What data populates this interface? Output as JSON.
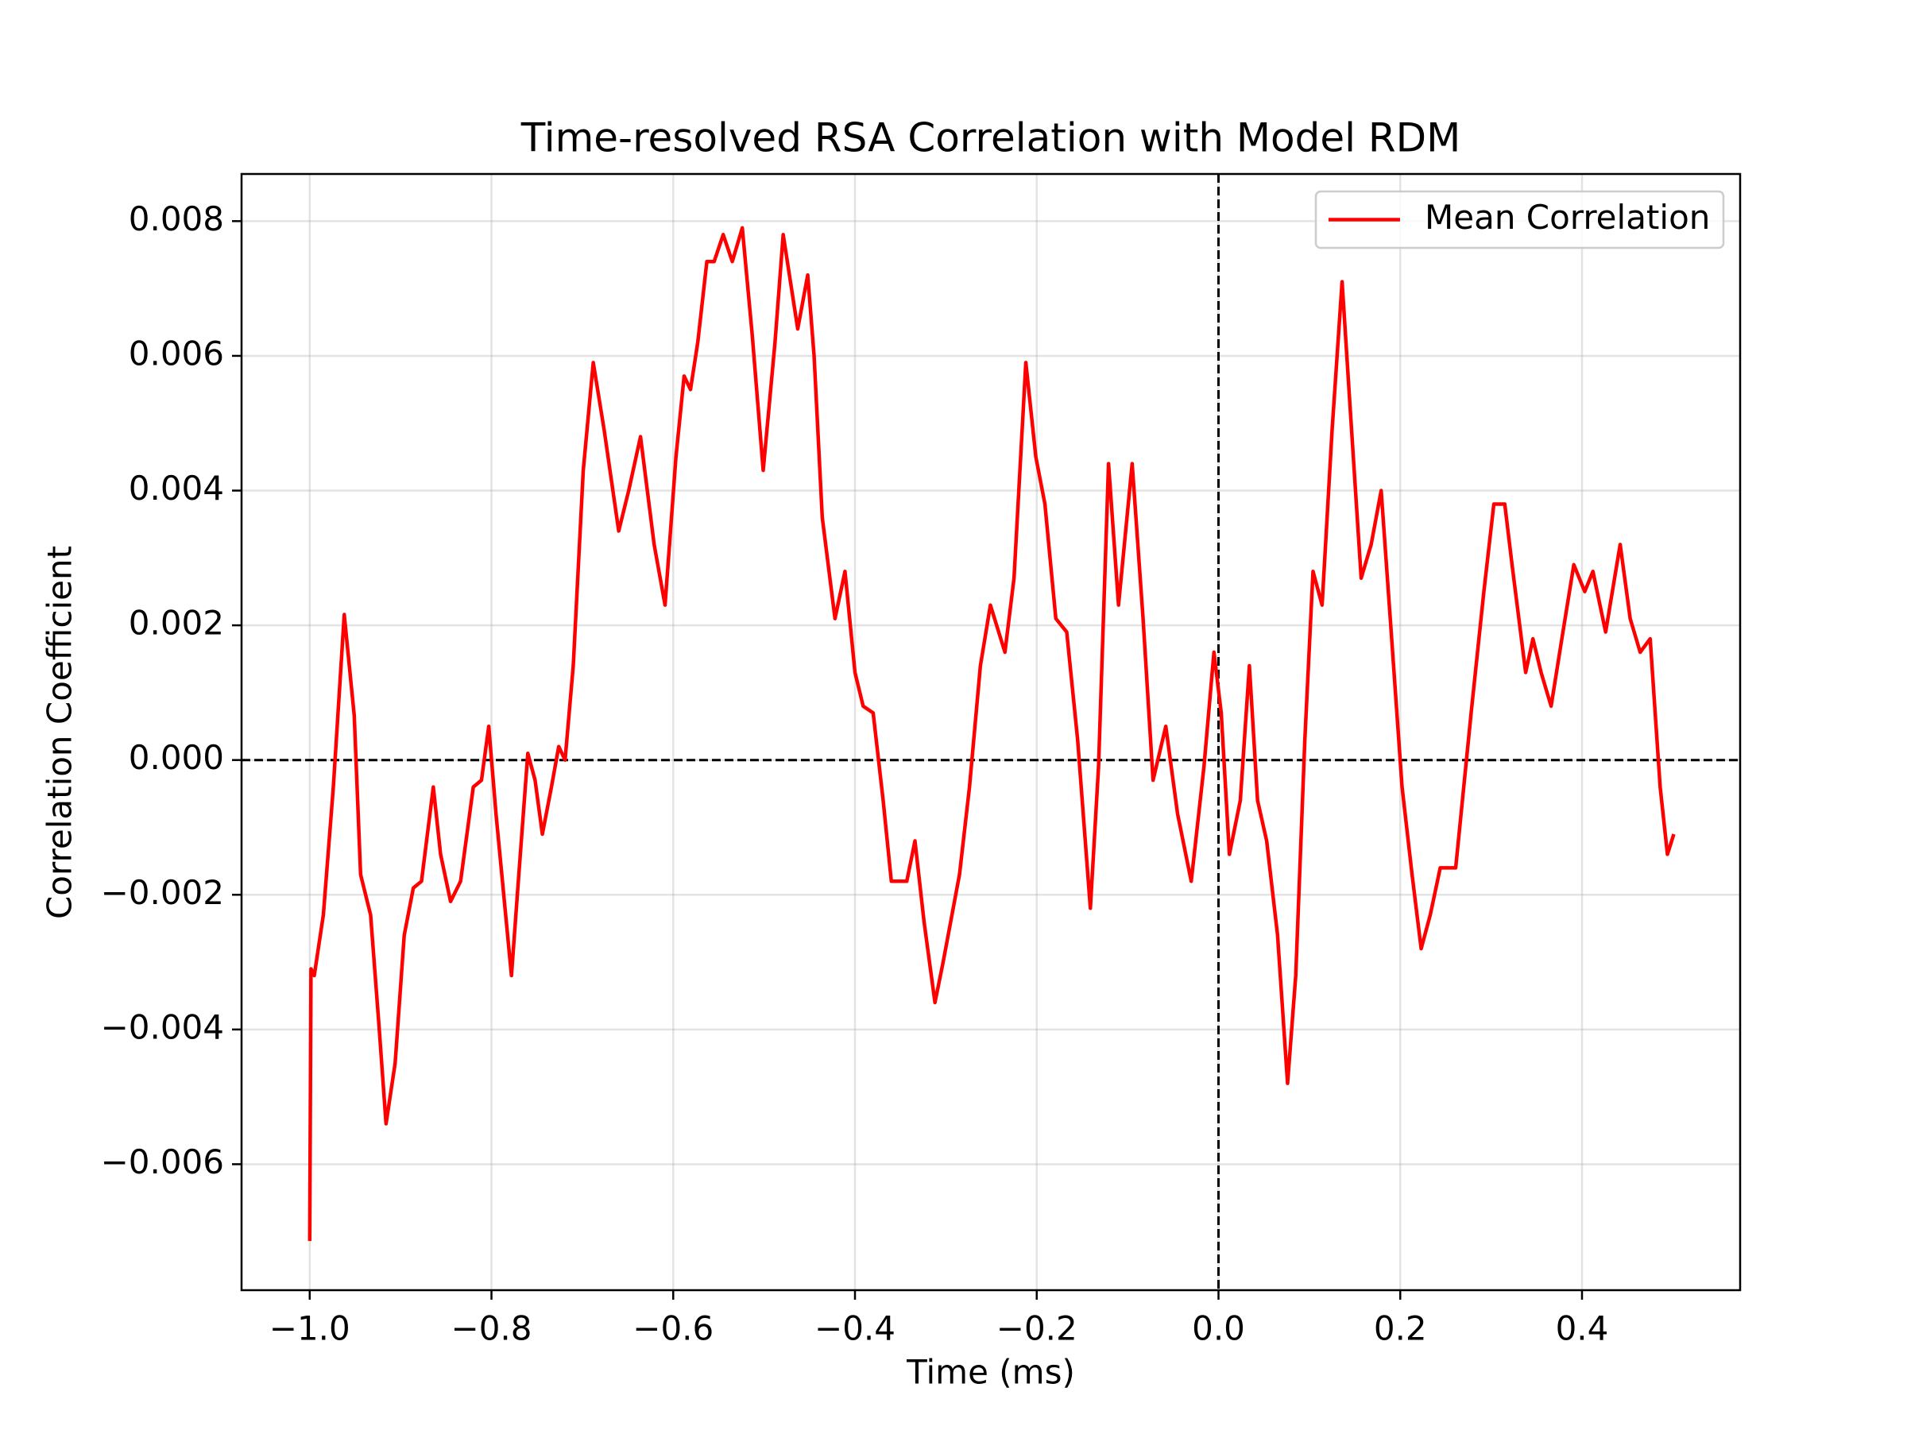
{
  "chart_data": {
    "type": "line",
    "title": "Time-resolved RSA Correlation with Model RDM",
    "xlabel": "Time (ms)",
    "ylabel": "Correlation Coefficient",
    "x": [
      -1.0,
      -0.9986,
      -0.995,
      -0.985,
      -0.974,
      -0.962,
      -0.951,
      -0.944,
      -0.933,
      -0.924,
      -0.916,
      -0.906,
      -0.896,
      -0.886,
      -0.877,
      -0.864,
      -0.856,
      -0.845,
      -0.834,
      -0.82,
      -0.811,
      -0.803,
      -0.795,
      -0.778,
      -0.771,
      -0.76,
      -0.752,
      -0.744,
      -0.734,
      -0.726,
      -0.719,
      -0.71,
      -0.699,
      -0.688,
      -0.676,
      -0.66,
      -0.649,
      -0.636,
      -0.621,
      -0.609,
      -0.597,
      -0.588,
      -0.581,
      -0.573,
      -0.563,
      -0.555,
      -0.545,
      -0.535,
      -0.524,
      -0.513,
      -0.501,
      -0.488,
      -0.479,
      -0.471,
      -0.463,
      -0.452,
      -0.445,
      -0.436,
      -0.422,
      -0.411,
      -0.4,
      -0.391,
      -0.38,
      -0.369,
      -0.36,
      -0.343,
      -0.334,
      -0.324,
      -0.312,
      -0.303,
      -0.285,
      -0.274,
      -0.262,
      -0.251,
      -0.235,
      -0.225,
      -0.212,
      -0.201,
      -0.191,
      -0.179,
      -0.167,
      -0.155,
      -0.141,
      -0.132,
      -0.121,
      -0.11,
      -0.095,
      -0.083,
      -0.072,
      -0.058,
      -0.045,
      -0.03,
      -0.016,
      -0.005,
      0.003,
      0.012,
      0.024,
      0.034,
      0.043,
      0.053,
      0.065,
      0.076,
      0.085,
      0.095,
      0.104,
      0.114,
      0.125,
      0.136,
      0.145,
      0.157,
      0.168,
      0.179,
      0.189,
      0.202,
      0.213,
      0.223,
      0.233,
      0.244,
      0.261,
      0.278,
      0.292,
      0.303,
      0.315,
      0.323,
      0.338,
      0.346,
      0.355,
      0.366,
      0.379,
      0.391,
      0.403,
      0.412,
      0.426,
      0.442,
      0.453,
      0.464,
      0.475,
      0.486,
      0.494,
      0.501
    ],
    "series": [
      {
        "name": "Mean Correlation",
        "color": "#ff0000",
        "values": [
          -0.00714,
          -0.0031,
          -0.0032,
          -0.0023,
          -0.0004,
          0.00216,
          0.00066,
          -0.0017,
          -0.0023,
          -0.0039,
          -0.0054,
          -0.0045,
          -0.0026,
          -0.0019,
          -0.0018,
          -0.0004,
          -0.0014,
          -0.0021,
          -0.0018,
          -0.0004,
          -0.0003,
          0.0005,
          -0.0008,
          -0.0032,
          -0.0019,
          0.0001,
          -0.0003,
          -0.0011,
          -0.0004,
          0.0002,
          0.0,
          0.0014,
          0.0043,
          0.0059,
          0.0049,
          0.0034,
          0.004,
          0.0048,
          0.0032,
          0.0023,
          0.0045,
          0.0057,
          0.0055,
          0.0062,
          0.0074,
          0.0074,
          0.0078,
          0.0074,
          0.0079,
          0.0063,
          0.0043,
          0.0062,
          0.0078,
          0.0071,
          0.0064,
          0.0072,
          0.006,
          0.0036,
          0.0021,
          0.0028,
          0.0013,
          0.0008,
          0.0007,
          -0.0006,
          -0.0018,
          -0.0018,
          -0.0012,
          -0.0024,
          -0.0036,
          -0.003,
          -0.0017,
          -0.0004,
          0.0014,
          0.0023,
          0.0016,
          0.0027,
          0.0059,
          0.0045,
          0.0038,
          0.0021,
          0.0019,
          0.0003,
          -0.0022,
          -0.0001,
          0.0044,
          0.0023,
          0.0044,
          0.0021,
          -0.0003,
          0.0005,
          -0.0008,
          -0.0018,
          -0.0001,
          0.0016,
          0.0007,
          -0.0014,
          -0.0006,
          0.0014,
          -0.0006,
          -0.0012,
          -0.0026,
          -0.0048,
          -0.0032,
          0.0003,
          0.0028,
          0.0023,
          0.0049,
          0.0071,
          0.0052,
          0.0027,
          0.0032,
          0.004,
          0.0021,
          -0.0004,
          -0.0017,
          -0.0028,
          -0.0023,
          -0.0016,
          -0.0016,
          0.0007,
          0.0025,
          0.0038,
          0.0038,
          0.0029,
          0.0013,
          0.0018,
          0.0013,
          0.0008,
          0.0019,
          0.0029,
          0.0025,
          0.0028,
          0.0019,
          0.0032,
          0.0021,
          0.0016,
          0.0018,
          -0.0004,
          -0.0014,
          -0.0011
        ]
      }
    ],
    "xlim": [
      -1.075,
      0.574
    ],
    "ylim": [
      -0.00787,
      0.0087
    ],
    "xticks": [
      {
        "value": -1.0,
        "label": "−1.0"
      },
      {
        "value": -0.8,
        "label": "−0.8"
      },
      {
        "value": -0.6,
        "label": "−0.6"
      },
      {
        "value": -0.4,
        "label": "−0.4"
      },
      {
        "value": -0.2,
        "label": "−0.2"
      },
      {
        "value": 0.0,
        "label": "0.0"
      },
      0.2,
      0.4
    ],
    "yticks": [
      {
        "value": -0.006,
        "label": "−0.006"
      },
      {
        "value": -0.004,
        "label": "−0.004"
      },
      {
        "value": -0.002,
        "label": "−0.002"
      },
      {
        "value": 0,
        "label": "0.000"
      },
      0.002,
      0.004,
      0.006,
      0.008
    ],
    "grid": true,
    "legend": "upper right",
    "axhline": 0,
    "axvline": 0
  }
}
